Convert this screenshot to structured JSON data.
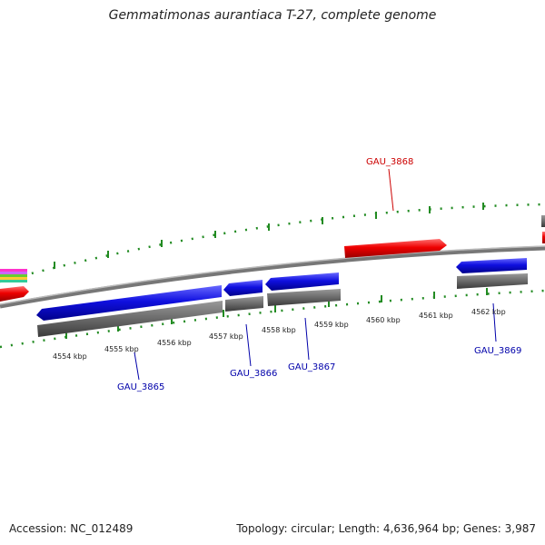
{
  "title": "Gemmatimonas aurantiaca T-27, complete genome",
  "footer": {
    "accession": "Accession: NC_012489",
    "summary": "Topology: circular; Length: 4,636,964 bp; Genes: 3,987"
  },
  "ticks": [
    {
      "label": "4554 kbp"
    },
    {
      "label": "4555 kbp"
    },
    {
      "label": "4556 kbp"
    },
    {
      "label": "4557 kbp"
    },
    {
      "label": "4558 kbp"
    },
    {
      "label": "4559 kbp"
    },
    {
      "label": "4560 kbp"
    },
    {
      "label": "4561 kbp"
    },
    {
      "label": "4562 kbp"
    }
  ],
  "genes": [
    {
      "label": "GAU_3865",
      "strand": "reverse",
      "color": "#0000dd"
    },
    {
      "label": "GAU_3866",
      "strand": "reverse",
      "color": "#0000dd"
    },
    {
      "label": "GAU_3867",
      "strand": "reverse",
      "color": "#0000dd"
    },
    {
      "label": "GAU_3868",
      "strand": "forward",
      "color": "#dd0000"
    },
    {
      "label": "GAU_3869",
      "strand": "reverse",
      "color": "#0000dd"
    }
  ],
  "colors": {
    "forward": "#dd0000",
    "reverse": "#0000dd",
    "backbone": "#888888",
    "tick": "#228b22",
    "product": "#666666"
  }
}
